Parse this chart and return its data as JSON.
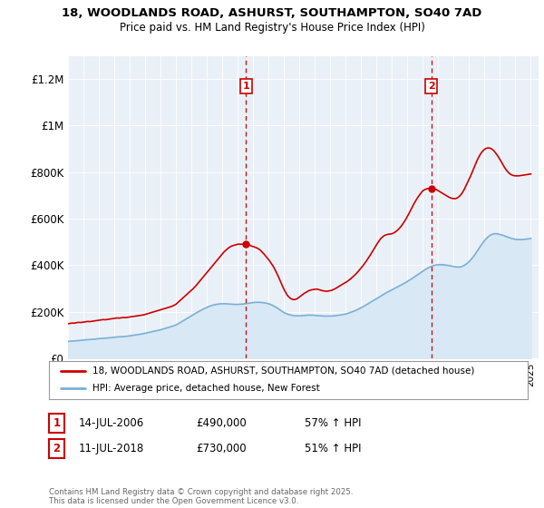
{
  "title1": "18, WOODLANDS ROAD, ASHURST, SOUTHAMPTON, SO40 7AD",
  "title2": "Price paid vs. HM Land Registry's House Price Index (HPI)",
  "ylabel_ticks": [
    "£0",
    "£200K",
    "£400K",
    "£600K",
    "£800K",
    "£1M",
    "£1.2M"
  ],
  "ytick_values": [
    0,
    200000,
    400000,
    600000,
    800000,
    1000000,
    1200000
  ],
  "ylim": [
    0,
    1300000
  ],
  "xlim_start": 1995.0,
  "xlim_end": 2025.5,
  "red_line_color": "#cc0000",
  "blue_line_color": "#7ab0d4",
  "blue_fill_color": "#d8e8f5",
  "plot_bg_color": "#eaf0f8",
  "legend_label_red": "18, WOODLANDS ROAD, ASHURST, SOUTHAMPTON, SO40 7AD (detached house)",
  "legend_label_blue": "HPI: Average price, detached house, New Forest",
  "transaction1_date": "14-JUL-2006",
  "transaction1_price": "£490,000",
  "transaction1_hpi": "57% ↑ HPI",
  "transaction1_year": 2006.54,
  "transaction2_date": "11-JUL-2018",
  "transaction2_price": "£730,000",
  "transaction2_hpi": "51% ↑ HPI",
  "transaction2_year": 2018.54,
  "t1_y": 490000,
  "t2_y": 730000,
  "footer": "Contains HM Land Registry data © Crown copyright and database right 2025.\nThis data is licensed under the Open Government Licence v3.0.",
  "red_data_x": [
    1995.0,
    1995.1,
    1995.2,
    1995.3,
    1995.4,
    1995.5,
    1995.6,
    1995.7,
    1995.8,
    1995.9,
    1996.0,
    1996.1,
    1996.2,
    1996.3,
    1996.4,
    1996.5,
    1996.6,
    1996.7,
    1996.8,
    1996.9,
    1997.0,
    1997.1,
    1997.2,
    1997.3,
    1997.4,
    1997.5,
    1997.6,
    1997.7,
    1997.8,
    1997.9,
    1998.0,
    1998.1,
    1998.2,
    1998.3,
    1998.4,
    1998.5,
    1998.6,
    1998.7,
    1998.8,
    1998.9,
    1999.0,
    1999.1,
    1999.2,
    1999.3,
    1999.4,
    1999.5,
    1999.6,
    1999.7,
    1999.8,
    1999.9,
    2000.0,
    2000.1,
    2000.2,
    2000.3,
    2000.4,
    2000.5,
    2000.6,
    2000.7,
    2000.8,
    2000.9,
    2001.0,
    2001.1,
    2001.2,
    2001.3,
    2001.4,
    2001.5,
    2001.6,
    2001.7,
    2001.8,
    2001.9,
    2002.0,
    2002.1,
    2002.2,
    2002.3,
    2002.4,
    2002.5,
    2002.6,
    2002.7,
    2002.8,
    2002.9,
    2003.0,
    2003.1,
    2003.2,
    2003.3,
    2003.4,
    2003.5,
    2003.6,
    2003.7,
    2003.8,
    2003.9,
    2004.0,
    2004.1,
    2004.2,
    2004.3,
    2004.4,
    2004.5,
    2004.6,
    2004.7,
    2004.8,
    2004.9,
    2005.0,
    2005.1,
    2005.2,
    2005.3,
    2005.4,
    2005.5,
    2005.6,
    2005.7,
    2005.8,
    2005.9,
    2006.0,
    2006.1,
    2006.2,
    2006.3,
    2006.4,
    2006.54,
    2006.7,
    2006.8,
    2006.9,
    2007.0,
    2007.1,
    2007.2,
    2007.3,
    2007.4,
    2007.5,
    2007.6,
    2007.7,
    2007.8,
    2007.9,
    2008.0,
    2008.1,
    2008.2,
    2008.3,
    2008.4,
    2008.5,
    2008.6,
    2008.7,
    2008.8,
    2008.9,
    2009.0,
    2009.1,
    2009.2,
    2009.3,
    2009.4,
    2009.5,
    2009.6,
    2009.7,
    2009.8,
    2009.9,
    2010.0,
    2010.1,
    2010.2,
    2010.3,
    2010.4,
    2010.5,
    2010.6,
    2010.7,
    2010.8,
    2010.9,
    2011.0,
    2011.1,
    2011.2,
    2011.3,
    2011.4,
    2011.5,
    2011.6,
    2011.7,
    2011.8,
    2011.9,
    2012.0,
    2012.1,
    2012.2,
    2012.3,
    2012.4,
    2012.5,
    2012.6,
    2012.7,
    2012.8,
    2012.9,
    2013.0,
    2013.1,
    2013.2,
    2013.3,
    2013.4,
    2013.5,
    2013.6,
    2013.7,
    2013.8,
    2013.9,
    2014.0,
    2014.1,
    2014.2,
    2014.3,
    2014.4,
    2014.5,
    2014.6,
    2014.7,
    2014.8,
    2014.9,
    2015.0,
    2015.1,
    2015.2,
    2015.3,
    2015.4,
    2015.5,
    2015.6,
    2015.7,
    2015.8,
    2015.9,
    2016.0,
    2016.1,
    2016.2,
    2016.3,
    2016.4,
    2016.5,
    2016.6,
    2016.7,
    2016.8,
    2016.9,
    2017.0,
    2017.1,
    2017.2,
    2017.3,
    2017.4,
    2017.5,
    2017.6,
    2017.7,
    2017.8,
    2017.9,
    2018.0,
    2018.1,
    2018.2,
    2018.3,
    2018.4,
    2018.54,
    2018.7,
    2018.8,
    2018.9,
    2019.0,
    2019.1,
    2019.2,
    2019.3,
    2019.4,
    2019.5,
    2019.6,
    2019.7,
    2019.8,
    2019.9,
    2020.0,
    2020.1,
    2020.2,
    2020.3,
    2020.4,
    2020.5,
    2020.6,
    2020.7,
    2020.8,
    2020.9,
    2021.0,
    2021.1,
    2021.2,
    2021.3,
    2021.4,
    2021.5,
    2021.6,
    2021.7,
    2021.8,
    2021.9,
    2022.0,
    2022.1,
    2022.2,
    2022.3,
    2022.4,
    2022.5,
    2022.6,
    2022.7,
    2022.8,
    2022.9,
    2023.0,
    2023.1,
    2023.2,
    2023.3,
    2023.4,
    2023.5,
    2023.6,
    2023.7,
    2023.8,
    2023.9,
    2024.0,
    2024.1,
    2024.2,
    2024.3,
    2024.4,
    2024.5,
    2024.6,
    2024.7,
    2024.8,
    2024.9,
    2025.0
  ],
  "red_data_y": [
    148000,
    149000,
    150000,
    151000,
    150000,
    152000,
    153000,
    154000,
    153000,
    154000,
    155000,
    156000,
    157000,
    158000,
    157000,
    158000,
    159000,
    160000,
    161000,
    162000,
    163000,
    164000,
    165000,
    166000,
    165000,
    166000,
    167000,
    168000,
    169000,
    170000,
    171000,
    172000,
    173000,
    172000,
    173000,
    174000,
    175000,
    174000,
    175000,
    176000,
    177000,
    178000,
    179000,
    180000,
    181000,
    182000,
    183000,
    184000,
    185000,
    186000,
    188000,
    190000,
    192000,
    194000,
    196000,
    198000,
    200000,
    202000,
    204000,
    206000,
    208000,
    210000,
    212000,
    214000,
    216000,
    218000,
    220000,
    222000,
    225000,
    228000,
    232000,
    238000,
    244000,
    250000,
    256000,
    262000,
    268000,
    274000,
    280000,
    286000,
    292000,
    298000,
    305000,
    312000,
    320000,
    328000,
    336000,
    344000,
    352000,
    360000,
    368000,
    376000,
    384000,
    392000,
    400000,
    408000,
    416000,
    424000,
    432000,
    440000,
    448000,
    456000,
    462000,
    468000,
    474000,
    478000,
    482000,
    484000,
    486000,
    488000,
    490000,
    490000,
    490000,
    490000,
    490000,
    490000,
    488000,
    485000,
    482000,
    480000,
    478000,
    475000,
    472000,
    468000,
    462000,
    455000,
    448000,
    440000,
    432000,
    424000,
    415000,
    405000,
    395000,
    383000,
    370000,
    356000,
    341000,
    325000,
    310000,
    296000,
    284000,
    272000,
    264000,
    258000,
    254000,
    252000,
    252000,
    254000,
    258000,
    263000,
    268000,
    273000,
    278000,
    282000,
    286000,
    290000,
    292000,
    294000,
    295000,
    296000,
    297000,
    296000,
    294000,
    292000,
    290000,
    289000,
    288000,
    288000,
    289000,
    290000,
    292000,
    295000,
    298000,
    302000,
    306000,
    310000,
    314000,
    318000,
    322000,
    326000,
    330000,
    335000,
    340000,
    346000,
    352000,
    358000,
    365000,
    372000,
    380000,
    388000,
    396000,
    405000,
    414000,
    424000,
    434000,
    444000,
    455000,
    466000,
    477000,
    488000,
    498000,
    508000,
    516000,
    522000,
    527000,
    530000,
    532000,
    533000,
    534000,
    535000,
    538000,
    542000,
    547000,
    553000,
    560000,
    568000,
    577000,
    587000,
    598000,
    610000,
    622000,
    635000,
    648000,
    661000,
    673000,
    684000,
    694000,
    703000,
    712000,
    720000,
    724000,
    727000,
    729000,
    730000,
    730000,
    729000,
    727000,
    724000,
    720000,
    716000,
    712000,
    708000,
    704000,
    700000,
    696000,
    692000,
    689000,
    687000,
    686000,
    686000,
    688000,
    692000,
    698000,
    706000,
    716000,
    728000,
    742000,
    756000,
    770000,
    784000,
    800000,
    816000,
    832000,
    848000,
    862000,
    874000,
    884000,
    892000,
    898000,
    902000,
    904000,
    904000,
    902000,
    898000,
    892000,
    884000,
    875000,
    865000,
    854000,
    843000,
    831000,
    820000,
    810000,
    802000,
    795000,
    790000,
    787000,
    785000,
    784000,
    784000,
    784000,
    785000,
    786000,
    787000,
    788000,
    789000,
    790000,
    791000,
    792000
  ],
  "blue_data_x": [
    1995.0,
    1995.2,
    1995.4,
    1995.6,
    1995.8,
    1996.0,
    1996.2,
    1996.4,
    1996.6,
    1996.8,
    1997.0,
    1997.2,
    1997.4,
    1997.6,
    1997.8,
    1998.0,
    1998.2,
    1998.4,
    1998.6,
    1998.8,
    1999.0,
    1999.2,
    1999.4,
    1999.6,
    1999.8,
    2000.0,
    2000.2,
    2000.4,
    2000.6,
    2000.8,
    2001.0,
    2001.2,
    2001.4,
    2001.6,
    2001.8,
    2002.0,
    2002.2,
    2002.4,
    2002.6,
    2002.8,
    2003.0,
    2003.2,
    2003.4,
    2003.6,
    2003.8,
    2004.0,
    2004.2,
    2004.4,
    2004.6,
    2004.8,
    2005.0,
    2005.2,
    2005.4,
    2005.6,
    2005.8,
    2006.0,
    2006.2,
    2006.4,
    2006.6,
    2006.8,
    2007.0,
    2007.2,
    2007.4,
    2007.6,
    2007.8,
    2008.0,
    2008.2,
    2008.4,
    2008.6,
    2008.8,
    2009.0,
    2009.2,
    2009.4,
    2009.6,
    2009.8,
    2010.0,
    2010.2,
    2010.4,
    2010.6,
    2010.8,
    2011.0,
    2011.2,
    2011.4,
    2011.6,
    2011.8,
    2012.0,
    2012.2,
    2012.4,
    2012.6,
    2012.8,
    2013.0,
    2013.2,
    2013.4,
    2013.6,
    2013.8,
    2014.0,
    2014.2,
    2014.4,
    2014.6,
    2014.8,
    2015.0,
    2015.2,
    2015.4,
    2015.6,
    2015.8,
    2016.0,
    2016.2,
    2016.4,
    2016.6,
    2016.8,
    2017.0,
    2017.2,
    2017.4,
    2017.6,
    2017.8,
    2018.0,
    2018.2,
    2018.4,
    2018.6,
    2018.8,
    2019.0,
    2019.2,
    2019.4,
    2019.6,
    2019.8,
    2020.0,
    2020.2,
    2020.4,
    2020.6,
    2020.8,
    2021.0,
    2021.2,
    2021.4,
    2021.6,
    2021.8,
    2022.0,
    2022.2,
    2022.4,
    2022.6,
    2022.8,
    2023.0,
    2023.2,
    2023.4,
    2023.6,
    2023.8,
    2024.0,
    2024.2,
    2024.4,
    2024.6,
    2024.8,
    2025.0
  ],
  "blue_data_y": [
    72000,
    73000,
    74000,
    75000,
    76000,
    78000,
    79000,
    80000,
    81000,
    82000,
    84000,
    85000,
    86000,
    87000,
    88000,
    90000,
    91000,
    92000,
    93000,
    94000,
    96000,
    98000,
    100000,
    102000,
    104000,
    107000,
    110000,
    113000,
    116000,
    119000,
    122000,
    126000,
    130000,
    134000,
    138000,
    143000,
    150000,
    158000,
    166000,
    174000,
    182000,
    190000,
    198000,
    205000,
    212000,
    218000,
    224000,
    228000,
    231000,
    233000,
    234000,
    234000,
    233000,
    232000,
    231000,
    231000,
    232000,
    233000,
    235000,
    237000,
    239000,
    240000,
    240000,
    239000,
    237000,
    234000,
    229000,
    222000,
    214000,
    205000,
    196000,
    190000,
    186000,
    183000,
    182000,
    182000,
    183000,
    184000,
    185000,
    185000,
    184000,
    183000,
    182000,
    181000,
    181000,
    181000,
    182000,
    183000,
    185000,
    187000,
    190000,
    194000,
    199000,
    204000,
    210000,
    217000,
    224000,
    232000,
    240000,
    248000,
    256000,
    264000,
    272000,
    280000,
    287000,
    294000,
    301000,
    308000,
    315000,
    322000,
    330000,
    338000,
    347000,
    356000,
    365000,
    374000,
    383000,
    390000,
    396000,
    400000,
    402000,
    402000,
    401000,
    399000,
    397000,
    394000,
    392000,
    392000,
    396000,
    404000,
    415000,
    430000,
    448000,
    468000,
    488000,
    506000,
    520000,
    530000,
    535000,
    535000,
    532000,
    528000,
    523000,
    518000,
    514000,
    511000,
    510000,
    510000,
    511000,
    513000,
    515000
  ]
}
